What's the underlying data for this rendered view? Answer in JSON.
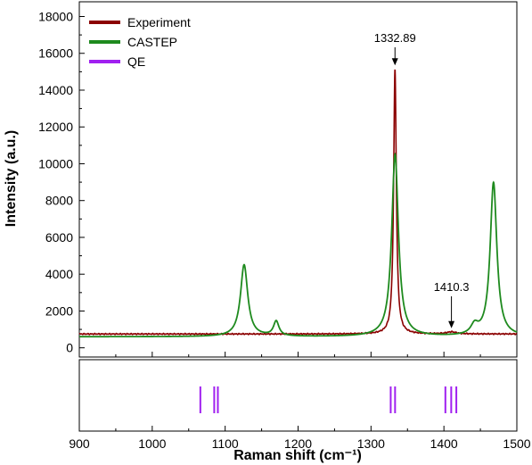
{
  "chart_data": {
    "type": "line",
    "xlabel": "Raman shift (cm⁻¹)",
    "ylabel": "Intensity (a.u.)",
    "xlim": [
      900,
      1500
    ],
    "ylim": [
      -500,
      18800
    ],
    "x_ticks": [
      "900",
      "1000",
      "1100",
      "1200",
      "1300",
      "1400",
      "1500"
    ],
    "y_ticks": [
      "0",
      "2000",
      "4000",
      "6000",
      "8000",
      "10000",
      "12000",
      "14000",
      "16000",
      "18000"
    ],
    "legend_position": "top-left",
    "series": [
      {
        "name": "Experiment",
        "color": "#8b0000",
        "baseline": 750,
        "peaks": [
          {
            "center": 1332.89,
            "height": 14400,
            "width": 2.2
          },
          {
            "center": 1410.3,
            "height": 110,
            "width": 8
          }
        ]
      },
      {
        "name": "CASTEP",
        "color": "#1e8a1e",
        "baseline": 600,
        "peaks": [
          {
            "center": 1126,
            "height": 3900,
            "width": 6
          },
          {
            "center": 1170,
            "height": 800,
            "width": 4.5
          },
          {
            "center": 1333,
            "height": 9900,
            "width": 5.5
          },
          {
            "center": 1442,
            "height": 500,
            "width": 6
          },
          {
            "center": 1468,
            "height": 8350,
            "width": 5.5
          }
        ]
      },
      {
        "name": "QE",
        "color": "#a020f0",
        "type": "stick",
        "positions": [
          1066,
          1085,
          1090,
          1327,
          1333,
          1402,
          1410,
          1417
        ]
      }
    ],
    "annotations": [
      {
        "label": "1332.89",
        "x": 1332.89
      },
      {
        "label": "1410.3",
        "x": 1410.3
      }
    ]
  }
}
